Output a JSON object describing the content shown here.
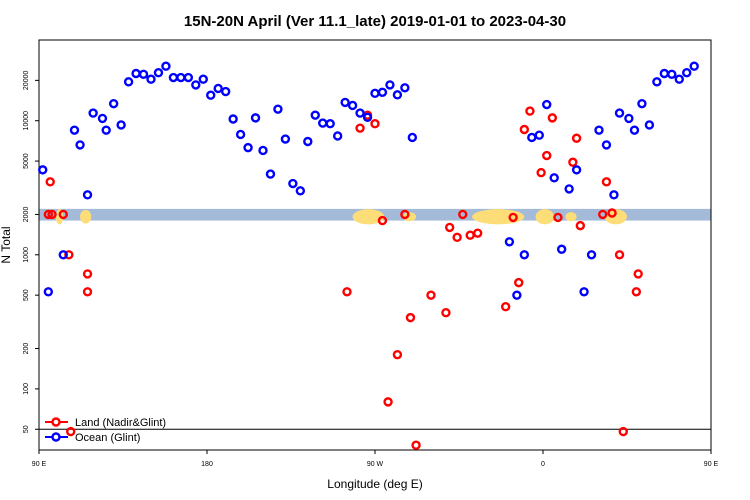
{
  "chart_data": {
    "type": "scatter",
    "title": "15N-20N April (Ver 11.1_late)   2019-01-01 to 2023-04-30",
    "xlabel": "Longitude (deg E)",
    "ylabel": "N Total",
    "xlim": [
      90,
      450
    ],
    "ylog": true,
    "ylim": [
      35,
      40000
    ],
    "x_ticks": [
      {
        "value": 90,
        "label": "90 E"
      },
      {
        "value": 180,
        "label": "180"
      },
      {
        "value": 270,
        "label": "90 W"
      },
      {
        "value": 360,
        "label": "0"
      },
      {
        "value": 450,
        "label": "90 E"
      }
    ],
    "y_ticks": [
      {
        "value": 50,
        "label": "50"
      },
      {
        "value": 100,
        "label": "100"
      },
      {
        "value": 200,
        "label": "200"
      },
      {
        "value": 500,
        "label": "500"
      },
      {
        "value": 1000,
        "label": "1000"
      },
      {
        "value": 2000,
        "label": "2000"
      },
      {
        "value": 5000,
        "label": "5000"
      },
      {
        "value": 10000,
        "label": "10000"
      },
      {
        "value": 20000,
        "label": "20000"
      }
    ],
    "legend_position": "bottom-left",
    "map_strip": {
      "y_range": [
        1800,
        2200
      ],
      "ocean_color": "#a4bad9",
      "land_color": "#fddd78"
    },
    "series": [
      {
        "name": "Land (Nadir&Glint)",
        "color": "#ff0000",
        "points": [
          [
            95,
            2000
          ],
          [
            96,
            3500
          ],
          [
            97,
            2000
          ],
          [
            103,
            2000
          ],
          [
            106,
            1000
          ],
          [
            107,
            48
          ],
          [
            116,
            530
          ],
          [
            116,
            720
          ],
          [
            255,
            530
          ],
          [
            262,
            8800
          ],
          [
            266,
            11000
          ],
          [
            270,
            9500
          ],
          [
            274,
            1800
          ],
          [
            277,
            80
          ],
          [
            282,
            180
          ],
          [
            286,
            2000
          ],
          [
            289,
            340
          ],
          [
            292,
            38
          ],
          [
            300,
            500
          ],
          [
            308,
            370
          ],
          [
            310,
            1600
          ],
          [
            314,
            1350
          ],
          [
            317,
            2000
          ],
          [
            321,
            1400
          ],
          [
            325,
            1450
          ],
          [
            340,
            410
          ],
          [
            344,
            1900
          ],
          [
            347,
            620
          ],
          [
            350,
            8600
          ],
          [
            353,
            11800
          ],
          [
            359,
            4100
          ],
          [
            362,
            5500
          ],
          [
            365,
            10500
          ],
          [
            368,
            1900
          ],
          [
            376,
            4900
          ],
          [
            378,
            7400
          ],
          [
            380,
            1650
          ],
          [
            392,
            2000
          ],
          [
            394,
            3500
          ],
          [
            397,
            2050
          ],
          [
            401,
            1000
          ],
          [
            403,
            48
          ],
          [
            410,
            530
          ],
          [
            411,
            720
          ]
        ]
      },
      {
        "name": "Ocean (Glint)",
        "color": "#0000ff",
        "points": [
          [
            92,
            4300
          ],
          [
            95,
            530
          ],
          [
            103,
            1000
          ],
          [
            109,
            8500
          ],
          [
            112,
            6600
          ],
          [
            116,
            2800
          ],
          [
            119,
            11400
          ],
          [
            124,
            10400
          ],
          [
            126,
            8500
          ],
          [
            130,
            13400
          ],
          [
            134,
            9300
          ],
          [
            138,
            19500
          ],
          [
            142,
            22500
          ],
          [
            146,
            22200
          ],
          [
            150,
            20400
          ],
          [
            154,
            22800
          ],
          [
            158,
            25500
          ],
          [
            162,
            21000
          ],
          [
            166,
            21000
          ],
          [
            170,
            21000
          ],
          [
            174,
            18500
          ],
          [
            178,
            20400
          ],
          [
            182,
            15500
          ],
          [
            186,
            17400
          ],
          [
            190,
            16500
          ],
          [
            194,
            10300
          ],
          [
            198,
            7900
          ],
          [
            202,
            6300
          ],
          [
            206,
            10500
          ],
          [
            210,
            6000
          ],
          [
            214,
            4000
          ],
          [
            218,
            12200
          ],
          [
            222,
            7300
          ],
          [
            226,
            3400
          ],
          [
            230,
            3000
          ],
          [
            234,
            7000
          ],
          [
            238,
            11000
          ],
          [
            242,
            9600
          ],
          [
            246,
            9500
          ],
          [
            250,
            7700
          ],
          [
            254,
            13700
          ],
          [
            258,
            13000
          ],
          [
            262,
            11400
          ],
          [
            266,
            10600
          ],
          [
            270,
            16000
          ],
          [
            274,
            16300
          ],
          [
            278,
            18500
          ],
          [
            282,
            15600
          ],
          [
            286,
            17600
          ],
          [
            290,
            7500
          ],
          [
            342,
            1250
          ],
          [
            346,
            500
          ],
          [
            350,
            1000
          ],
          [
            354,
            7500
          ],
          [
            358,
            7800
          ],
          [
            362,
            13200
          ],
          [
            366,
            3750
          ],
          [
            370,
            1100
          ],
          [
            374,
            3100
          ],
          [
            378,
            4300
          ],
          [
            382,
            530
          ],
          [
            386,
            1000
          ],
          [
            390,
            8500
          ],
          [
            394,
            6600
          ],
          [
            398,
            2800
          ],
          [
            401,
            11400
          ],
          [
            406,
            10400
          ],
          [
            409,
            8500
          ],
          [
            413,
            13400
          ],
          [
            417,
            9300
          ],
          [
            421,
            19500
          ],
          [
            425,
            22500
          ],
          [
            429,
            22200
          ],
          [
            433,
            20400
          ],
          [
            437,
            22800
          ],
          [
            441,
            25500
          ]
        ]
      }
    ]
  }
}
